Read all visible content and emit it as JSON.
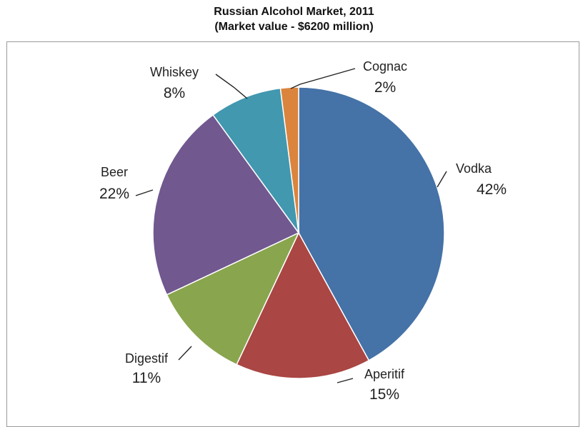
{
  "chart_data": {
    "type": "pie",
    "title": "Russian Alcohol Market, 2011",
    "subtitle": "(Market value - $6200 million)",
    "categories": [
      "Vodka",
      "Aperitif",
      "Digestif",
      "Beer",
      "Whiskey",
      "Cognac"
    ],
    "values": [
      42,
      15,
      11,
      22,
      8,
      2
    ],
    "value_labels": [
      "42%",
      "15%",
      "11%",
      "22%",
      "8%",
      "2%"
    ],
    "colors": [
      "#4572A7",
      "#AA4643",
      "#89A54E",
      "#71588F",
      "#4198AF",
      "#DB843D"
    ],
    "legend": "none",
    "start_angle": "12 o'clock, clockwise"
  }
}
